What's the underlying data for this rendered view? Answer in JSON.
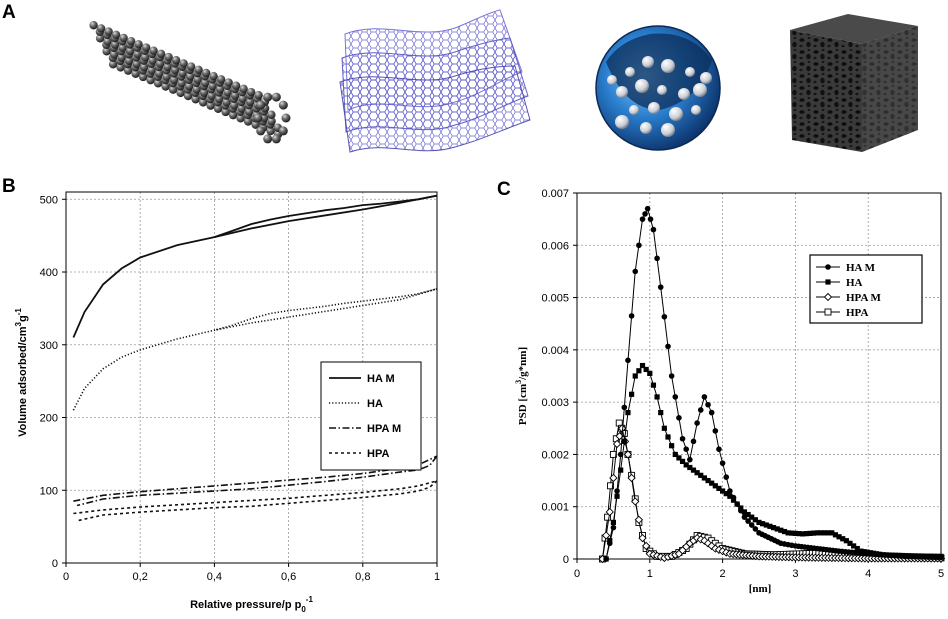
{
  "panels": {
    "a_label": "A",
    "b_label": "B",
    "c_label": "C",
    "a_structures": [
      "carbon-nanotube",
      "graphene-sheets",
      "porous-sphere",
      "porous-carbon-block"
    ]
  },
  "chart_data": [
    {
      "panel": "B",
      "type": "line",
      "title": "",
      "xlabel": "Relative pressure/p p",
      "xlabel_sub": "0",
      "xlabel_sup": "-1",
      "ylabel": "Volume adsorbed/cm",
      "ylabel_sup1": "3",
      "ylabel_mid": "g",
      "ylabel_sup2": "-1",
      "xlim": [
        0,
        1
      ],
      "ylim": [
        0,
        510
      ],
      "xticks": [
        0,
        0.2,
        0.4,
        0.6,
        0.8,
        1
      ],
      "xtick_labels": [
        "0",
        "0,2",
        "0,4",
        "0,6",
        "0,8",
        "1"
      ],
      "yticks": [
        0,
        100,
        200,
        300,
        400,
        500
      ],
      "ytick_labels": [
        "0",
        "100",
        "200",
        "300",
        "400",
        "500"
      ],
      "grid": true,
      "legend": [
        "HA M",
        "HA",
        "HPA M",
        "HPA"
      ],
      "legend_position": "center-right",
      "series": [
        {
          "name": "HA M",
          "style": "solid",
          "adsorption": [
            [
              0.02,
              310
            ],
            [
              0.05,
              345
            ],
            [
              0.1,
              383
            ],
            [
              0.15,
              405
            ],
            [
              0.2,
              420
            ],
            [
              0.3,
              437
            ],
            [
              0.4,
              448
            ],
            [
              0.5,
              460
            ],
            [
              0.6,
              470
            ],
            [
              0.7,
              478
            ],
            [
              0.8,
              486
            ],
            [
              0.9,
              495
            ],
            [
              1.0,
              505
            ]
          ],
          "desorption": [
            [
              1.0,
              505
            ],
            [
              0.95,
              500
            ],
            [
              0.9,
              497
            ],
            [
              0.85,
              494
            ],
            [
              0.8,
              492
            ],
            [
              0.75,
              488
            ],
            [
              0.7,
              485
            ],
            [
              0.65,
              481
            ],
            [
              0.6,
              477
            ],
            [
              0.55,
              472
            ],
            [
              0.5,
              466
            ],
            [
              0.45,
              457
            ],
            [
              0.4,
              448
            ]
          ]
        },
        {
          "name": "HA",
          "style": "dotted",
          "adsorption": [
            [
              0.02,
              210
            ],
            [
              0.05,
              240
            ],
            [
              0.1,
              267
            ],
            [
              0.15,
              283
            ],
            [
              0.2,
              293
            ],
            [
              0.3,
              308
            ],
            [
              0.4,
              320
            ],
            [
              0.5,
              330
            ],
            [
              0.6,
              338
            ],
            [
              0.7,
              346
            ],
            [
              0.8,
              354
            ],
            [
              0.9,
              362
            ],
            [
              1.0,
              377
            ]
          ],
          "desorption": [
            [
              1.0,
              377
            ],
            [
              0.95,
              370
            ],
            [
              0.9,
              366
            ],
            [
              0.85,
              363
            ],
            [
              0.8,
              360
            ],
            [
              0.75,
              357
            ],
            [
              0.7,
              353
            ],
            [
              0.65,
              350
            ],
            [
              0.6,
              347
            ],
            [
              0.55,
              343
            ],
            [
              0.5,
              336
            ],
            [
              0.45,
              327
            ],
            [
              0.4,
              320
            ]
          ]
        },
        {
          "name": "HPA M",
          "style": "dashdot",
          "adsorption": [
            [
              0.02,
              85
            ],
            [
              0.1,
              93
            ],
            [
              0.2,
              98
            ],
            [
              0.3,
              102
            ],
            [
              0.4,
              106
            ],
            [
              0.5,
              110
            ],
            [
              0.6,
              114
            ],
            [
              0.7,
              118
            ],
            [
              0.8,
              123
            ],
            [
              0.9,
              130
            ],
            [
              0.95,
              135
            ],
            [
              1.0,
              147
            ]
          ],
          "desorption": [
            [
              1.0,
              147
            ],
            [
              0.98,
              134
            ],
            [
              0.95,
              128
            ],
            [
              0.9,
              125
            ],
            [
              0.8,
              118
            ],
            [
              0.7,
              112
            ],
            [
              0.6,
              107
            ],
            [
              0.5,
              102
            ],
            [
              0.4,
              99
            ],
            [
              0.3,
              96
            ],
            [
              0.2,
              93
            ],
            [
              0.1,
              88
            ],
            [
              0.03,
              79
            ]
          ]
        },
        {
          "name": "HPA",
          "style": "dashed",
          "adsorption": [
            [
              0.02,
              68
            ],
            [
              0.1,
              73
            ],
            [
              0.2,
              77
            ],
            [
              0.3,
              80
            ],
            [
              0.4,
              83
            ],
            [
              0.5,
              86
            ],
            [
              0.6,
              89
            ],
            [
              0.7,
              93
            ],
            [
              0.8,
              97
            ],
            [
              0.9,
              102
            ],
            [
              0.95,
              106
            ],
            [
              1.0,
              113
            ]
          ],
          "desorption": [
            [
              1.0,
              113
            ],
            [
              0.98,
              104
            ],
            [
              0.95,
              99
            ],
            [
              0.9,
              95
            ],
            [
              0.8,
              90
            ],
            [
              0.7,
              86
            ],
            [
              0.6,
              82
            ],
            [
              0.5,
              78
            ],
            [
              0.4,
              76
            ],
            [
              0.3,
              73
            ],
            [
              0.2,
              70
            ],
            [
              0.1,
              66
            ],
            [
              0.03,
              58
            ]
          ]
        }
      ]
    },
    {
      "panel": "C",
      "type": "line",
      "title": "",
      "xlabel": "[nm]",
      "ylabel": "PSD [cm",
      "ylabel_sup1": "3",
      "ylabel_mid": "/g*nm]",
      "xlim": [
        0,
        5
      ],
      "ylim": [
        0,
        0.007
      ],
      "xticks": [
        0,
        1,
        2,
        3,
        4,
        5
      ],
      "xtick_labels": [
        "0",
        "1",
        "2",
        "3",
        "4",
        "5"
      ],
      "yticks": [
        0,
        0.001,
        0.002,
        0.003,
        0.004,
        0.005,
        0.006,
        0.007
      ],
      "ytick_labels": [
        "0",
        "0.001",
        "0.002",
        "0.003",
        "0.004",
        "0.005",
        "0.006",
        "0.007"
      ],
      "grid": true,
      "legend": [
        "HA M",
        "HA",
        "HPA M",
        "HPA"
      ],
      "legend_position": "top-right",
      "series": [
        {
          "name": "HA M",
          "marker": "filled-circle",
          "points": [
            [
              0.4,
              0
            ],
            [
              0.5,
              0.0006
            ],
            [
              0.6,
              0.002
            ],
            [
              0.7,
              0.0038
            ],
            [
              0.8,
              0.0055
            ],
            [
              0.9,
              0.0065
            ],
            [
              0.97,
              0.0067
            ],
            [
              1.05,
              0.0063
            ],
            [
              1.15,
              0.0052
            ],
            [
              1.3,
              0.0035
            ],
            [
              1.45,
              0.0023
            ],
            [
              1.55,
              0.0019
            ],
            [
              1.65,
              0.0026
            ],
            [
              1.75,
              0.0031
            ],
            [
              1.85,
              0.0028
            ],
            [
              1.95,
              0.0021
            ],
            [
              2.1,
              0.0013
            ],
            [
              2.3,
              0.0008
            ],
            [
              2.5,
              0.0005
            ],
            [
              2.8,
              0.0003
            ],
            [
              3.0,
              0.00025
            ],
            [
              3.3,
              0.0002
            ],
            [
              3.6,
              0.00015
            ],
            [
              4.0,
              0.0001
            ],
            [
              4.5,
              5e-05
            ],
            [
              5.0,
              3e-05
            ]
          ]
        },
        {
          "name": "HA",
          "marker": "filled-square",
          "points": [
            [
              0.4,
              0
            ],
            [
              0.5,
              0.0007
            ],
            [
              0.6,
              0.0017
            ],
            [
              0.7,
              0.0028
            ],
            [
              0.8,
              0.0035
            ],
            [
              0.9,
              0.0037
            ],
            [
              1.0,
              0.00355
            ],
            [
              1.1,
              0.0031
            ],
            [
              1.2,
              0.0025
            ],
            [
              1.35,
              0.002
            ],
            [
              1.5,
              0.0018
            ],
            [
              1.7,
              0.0016
            ],
            [
              1.9,
              0.0014
            ],
            [
              2.1,
              0.0012
            ],
            [
              2.3,
              0.0009
            ],
            [
              2.5,
              0.0007
            ],
            [
              2.7,
              0.0006
            ],
            [
              2.9,
              0.0005
            ],
            [
              3.1,
              0.00048
            ],
            [
              3.3,
              0.0005
            ],
            [
              3.5,
              0.0005
            ],
            [
              3.7,
              0.00035
            ],
            [
              3.9,
              0.00015
            ],
            [
              4.2,
              8e-05
            ],
            [
              4.6,
              6e-05
            ],
            [
              5.0,
              5e-05
            ]
          ]
        },
        {
          "name": "HPA M",
          "marker": "open-diamond",
          "points": [
            [
              0.35,
              0
            ],
            [
              0.45,
              0.0009
            ],
            [
              0.55,
              0.0022
            ],
            [
              0.62,
              0.0025
            ],
            [
              0.7,
              0.002
            ],
            [
              0.8,
              0.0011
            ],
            [
              0.9,
              0.0004
            ],
            [
              1.0,
              0.0001
            ],
            [
              1.2,
              2e-05
            ],
            [
              1.4,
              0.0001
            ],
            [
              1.55,
              0.0003
            ],
            [
              1.65,
              0.0004
            ],
            [
              1.75,
              0.00035
            ],
            [
              1.9,
              0.0002
            ],
            [
              2.1,
              0.0001
            ],
            [
              2.5,
              5e-05
            ],
            [
              3.0,
              3e-05
            ],
            [
              3.5,
              2e-05
            ],
            [
              4.0,
              1e-05
            ],
            [
              5.0,
              1e-05
            ]
          ]
        },
        {
          "name": "HPA",
          "marker": "open-square",
          "points": [
            [
              0.35,
              0
            ],
            [
              0.42,
              0.0008
            ],
            [
              0.5,
              0.002
            ],
            [
              0.58,
              0.0026
            ],
            [
              0.65,
              0.0024
            ],
            [
              0.75,
              0.0016
            ],
            [
              0.85,
              0.0007
            ],
            [
              0.95,
              0.0002
            ],
            [
              1.1,
              5e-05
            ],
            [
              1.3,
              5e-05
            ],
            [
              1.5,
              0.0002
            ],
            [
              1.65,
              0.00045
            ],
            [
              1.8,
              0.0004
            ],
            [
              2.0,
              0.0002
            ],
            [
              2.3,
              0.0001
            ],
            [
              2.7,
              8e-05
            ],
            [
              3.1,
              0.0001
            ],
            [
              3.5,
              0.00012
            ],
            [
              3.8,
              0.0001
            ],
            [
              4.2,
              5e-05
            ],
            [
              4.6,
              3e-05
            ],
            [
              5.0,
              2e-05
            ]
          ]
        }
      ]
    }
  ]
}
